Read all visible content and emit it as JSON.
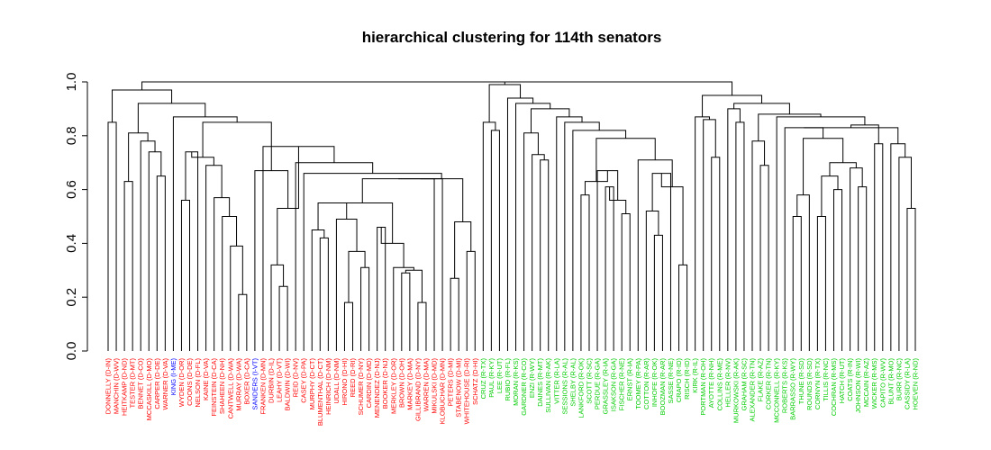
{
  "chart_data": {
    "type": "dendrogram",
    "title": "hierarchical clustering for 114th senators",
    "xlabel": "",
    "ylabel": "",
    "ylim": [
      0,
      1
    ],
    "yticks": [
      "0.0",
      "0.2",
      "0.4",
      "0.6",
      "0.8",
      "1.0"
    ],
    "party_colors": {
      "D": "#ff0000",
      "I": "#0000ff",
      "R": "#00cc00"
    },
    "leaves": [
      "DONNELLY (D-IN)",
      "MANCHIN (D-WV)",
      "HEITKAMP (D-ND)",
      "TESTER (D-MT)",
      "BENNET (D-CO)",
      "MCCASKILL (D-MO)",
      "CARPER (D-DE)",
      "WARNER (D-VA)",
      "KING (I-ME)",
      "WYDEN (D-OR)",
      "COONS (D-DE)",
      "NELSON (D-FL)",
      "KAINE (D-VA)",
      "FEINSTEIN (D-CA)",
      "SHAHEEN (D-NH)",
      "CANTWELL (D-WA)",
      "MURRAY (D-WA)",
      "BOXER (D-CA)",
      "SANDERS (I-VT)",
      "FRANKEN (D-MN)",
      "DURBIN (D-IL)",
      "LEAHY (D-VT)",
      "BALDWIN (D-WI)",
      "REID (D-NV)",
      "CASEY (D-PA)",
      "MURPHY (D-CT)",
      "BLUMENTHAL (D-CT)",
      "HEINRICH (D-NM)",
      "UDALL (D-NM)",
      "HIRONO (D-HI)",
      "REED (D-RI)",
      "SCHUMER (D-NY)",
      "CARDIN (D-MD)",
      "MENENDEZ (D-NJ)",
      "BOOKER (D-NJ)",
      "MERKLEY (D-OR)",
      "BROWN (D-OH)",
      "MARKEY (D-MA)",
      "GILLIBRAND (D-NY)",
      "WARREN (D-MA)",
      "MIKULSKI (D-MD)",
      "KLOBUCHAR (D-MN)",
      "PETERS (D-MI)",
      "STABENOW (D-MI)",
      "WHITEHOUSE (D-RI)",
      "SCHATZ (D-HI)",
      "CRUZ (R-TX)",
      "PAUL (R-KY)",
      "LEE (R-UT)",
      "RUBIO (R-FL)",
      "MORAN (R-KS)",
      "GARDNER (R-CO)",
      "ENZI (R-WY)",
      "DAINES (R-MT)",
      "SULLIVAN (R-AK)",
      "VITTER (R-LA)",
      "SESSIONS (R-AL)",
      "SHELBY (R-AL)",
      "LANKFORD (R-OK)",
      "SCOTT (R-SC)",
      "PERDUE (R-GA)",
      "GRASSLEY (R-IA)",
      "ISAKSON (R-GA)",
      "FISCHER (R-NE)",
      "ERNST (R-IA)",
      "TOOMEY (R-PA)",
      "COTTON (R-AR)",
      "INHOFE (R-OK)",
      "BOOZMAN (R-AR)",
      "SASSE (R-NE)",
      "CRAPO (R-ID)",
      "RISCH (R-ID)",
      "KIRK (R-IL)",
      "PORTMAN (R-OH)",
      "AYOTTE (R-NH)",
      "COLLINS (R-ME)",
      "HELLER (R-NV)",
      "MURKOWSKI (R-AK)",
      "GRAHAM (R-SC)",
      "ALEXANDER (R-TN)",
      "FLAKE (R-AZ)",
      "CORKER (R-TN)",
      "MCCONNELL (R-KY)",
      "ROBERTS (R-KS)",
      "BARRASSO (R-WY)",
      "THUNE (R-SD)",
      "ROUNDS (R-SD)",
      "CORNYN (R-TX)",
      "TILLIS (R-NC)",
      "COCHRAN (R-MS)",
      "HATCH (R-UT)",
      "COATS (R-IN)",
      "JOHNSON (R-WI)",
      "MCCAIN (R-AZ)",
      "WICKER (R-MS)",
      "CAPITO (R-WV)",
      "BLUNT (R-MO)",
      "BURR (R-NC)",
      "CASSIDY (R-LA)",
      "HOEVEN (R-ND)"
    ],
    "merges": [
      [
        [
          "L",
          29
        ],
        [
          "L",
          30
        ],
        0.18
      ],
      [
        [
          "L",
          38
        ],
        [
          "L",
          39
        ],
        0.18
      ],
      [
        [
          "L",
          36
        ],
        [
          "L",
          37
        ],
        0.29
      ],
      [
        [
          "M",
          1
        ],
        [
          "N",
          2
        ],
        0.3
      ],
      [
        [
          "L",
          35
        ],
        [
          "M",
          3
        ],
        0.31
      ],
      [
        [
          "L",
          31
        ],
        [
          "L",
          32
        ],
        0.31
      ],
      [
        [
          "L",
          21
        ],
        [
          "L",
          22
        ],
        0.24
      ],
      [
        [
          "L",
          20
        ],
        [
          "M",
          6
        ],
        0.32
      ],
      [
        [
          "L",
          70
        ],
        [
          "L",
          71
        ],
        0.32
      ],
      [
        [
          "L",
          26
        ],
        [
          "L",
          27
        ],
        0.42
      ],
      [
        [
          "L",
          25
        ],
        [
          "M",
          9
        ],
        0.45
      ],
      [
        [
          "L",
          87
        ],
        [
          "L",
          88
        ],
        0.5
      ],
      [
        [
          "L",
          89
        ],
        [
          "L",
          90
        ],
        0.6
      ],
      [
        [
          "M",
          11
        ],
        [
          "M",
          12
        ],
        0.65
      ],
      [
        [
          "L",
          44
        ],
        [
          "L",
          45
        ],
        0.37
      ],
      [
        [
          "L",
          42
        ],
        [
          "L",
          43
        ],
        0.27
      ],
      [
        [
          "M",
          15
        ],
        [
          "M",
          14
        ],
        0.48
      ],
      [
        [
          "L",
          16
        ],
        [
          "L",
          17
        ],
        0.21
      ],
      [
        [
          "L",
          15
        ],
        [
          "M",
          17
        ],
        0.39
      ],
      [
        [
          "L",
          14
        ],
        [
          "M",
          18
        ],
        0.5
      ],
      [
        [
          "L",
          13
        ],
        [
          "M",
          19
        ],
        0.57
      ],
      [
        [
          "L",
          12
        ],
        [
          "M",
          20
        ],
        0.69
      ],
      [
        [
          "L",
          9
        ],
        [
          "L",
          10
        ],
        0.56
      ],
      [
        [
          "M",
          22
        ],
        [
          "L",
          11
        ],
        0.74
      ],
      [
        [
          "M",
          23
        ],
        [
          "M",
          21
        ],
        0.72
      ],
      [
        [
          "L",
          6
        ],
        [
          "L",
          7
        ],
        0.65
      ],
      [
        [
          "M",
          25
        ],
        [
          "L",
          5
        ],
        0.74
      ],
      [
        [
          "M",
          26
        ],
        [
          "L",
          4
        ],
        0.78
      ],
      [
        [
          "L",
          2
        ],
        [
          "L",
          3
        ],
        0.63
      ],
      [
        [
          "M",
          28
        ],
        [
          "M",
          27
        ],
        0.81
      ],
      [
        [
          "L",
          0
        ],
        [
          "L",
          1
        ],
        0.85
      ],
      [
        [
          "M",
          0
        ],
        [
          "M",
          5
        ],
        0.37
      ],
      [
        [
          "L",
          28
        ],
        [
          "M",
          31
        ],
        0.49
      ],
      [
        [
          "M",
          32
        ],
        [
          "M",
          10
        ],
        0.55
      ],
      [
        [
          "L",
          33
        ],
        [
          "L",
          34
        ],
        0.46
      ],
      [
        [
          "M",
          34
        ],
        [
          "M",
          4
        ],
        0.4
      ],
      [
        [
          "M",
          33
        ],
        [
          "M",
          35
        ],
        0.55
      ],
      [
        [
          "M",
          36
        ],
        [
          "L",
          40
        ],
        0.64
      ],
      [
        [
          "M",
          37
        ],
        [
          "L",
          41
        ],
        0.64
      ],
      [
        [
          "M",
          38
        ],
        [
          "M",
          16
        ],
        0.64
      ],
      [
        [
          "M",
          39
        ],
        [
          "L",
          24
        ],
        0.66
      ],
      [
        [
          "M",
          40
        ],
        [
          "L",
          23
        ],
        0.7
      ],
      [
        [
          "M",
          41
        ],
        [
          "L",
          19
        ],
        0.76
      ],
      [
        [
          "M",
          42
        ],
        [
          "M",
          7
        ],
        0.53
      ],
      [
        [
          "M",
          43
        ],
        [
          "L",
          18
        ],
        0.67
      ],
      [
        [
          "M",
          44
        ],
        [
          "M",
          24
        ],
        0.85
      ],
      [
        [
          "M",
          45
        ],
        [
          "L",
          8
        ],
        0.87
      ],
      [
        [
          "M",
          46
        ],
        [
          "M",
          29
        ],
        0.92
      ],
      [
        [
          "M",
          47
        ],
        [
          "M",
          30
        ],
        0.97
      ],
      [
        [
          "L",
          47
        ],
        [
          "L",
          48
        ],
        0.82
      ],
      [
        [
          "L",
          46
        ],
        [
          "M",
          49
        ],
        0.85
      ],
      [
        [
          "L",
          53
        ],
        [
          "L",
          54
        ],
        0.71
      ],
      [
        [
          "L",
          52
        ],
        [
          "M",
          51
        ],
        0.73
      ],
      [
        [
          "L",
          51
        ],
        [
          "M",
          52
        ],
        0.81
      ],
      [
        [
          "L",
          61
        ],
        [
          "L",
          62
        ],
        0.61
      ],
      [
        [
          "L",
          63
        ],
        [
          "L",
          64
        ],
        0.51
      ],
      [
        [
          "M",
          54
        ],
        [
          "M",
          55
        ],
        0.56
      ],
      [
        [
          "L",
          60
        ],
        [
          "M",
          56
        ],
        0.67
      ],
      [
        [
          "L",
          58
        ],
        [
          "L",
          59
        ],
        0.58
      ],
      [
        [
          "M",
          58
        ],
        [
          "M",
          57
        ],
        0.63
      ],
      [
        [
          "L",
          67
        ],
        [
          "L",
          68
        ],
        0.43
      ],
      [
        [
          "L",
          66
        ],
        [
          "M",
          60
        ],
        0.52
      ],
      [
        [
          "M",
          61
        ],
        [
          "L",
          69
        ],
        0.66
      ],
      [
        [
          "M",
          62
        ],
        [
          "M",
          8
        ],
        0.61
      ],
      [
        [
          "L",
          65
        ],
        [
          "M",
          63
        ],
        0.71
      ],
      [
        [
          "M",
          59
        ],
        [
          "M",
          64
        ],
        0.79
      ],
      [
        [
          "L",
          57
        ],
        [
          "M",
          65
        ],
        0.82
      ],
      [
        [
          "L",
          56
        ],
        [
          "M",
          66
        ],
        0.85
      ],
      [
        [
          "L",
          55
        ],
        [
          "M",
          67
        ],
        0.87
      ],
      [
        [
          "M",
          53
        ],
        [
          "M",
          68
        ],
        0.9
      ],
      [
        [
          "L",
          50
        ],
        [
          "M",
          69
        ],
        0.92
      ],
      [
        [
          "L",
          49
        ],
        [
          "M",
          70
        ],
        0.94
      ],
      [
        [
          "M",
          50
        ],
        [
          "M",
          71
        ],
        0.99
      ],
      [
        [
          "L",
          74
        ],
        [
          "L",
          75
        ],
        0.72
      ],
      [
        [
          "L",
          73
        ],
        [
          "M",
          73
        ],
        0.86
      ],
      [
        [
          "L",
          72
        ],
        [
          "M",
          74
        ],
        0.87
      ],
      [
        [
          "L",
          77
        ],
        [
          "L",
          78
        ],
        0.85
      ],
      [
        [
          "L",
          76
        ],
        [
          "M",
          76
        ],
        0.9
      ],
      [
        [
          "L",
          80
        ],
        [
          "L",
          81
        ],
        0.69
      ],
      [
        [
          "L",
          79
        ],
        [
          "M",
          78
        ],
        0.78
      ],
      [
        [
          "L",
          84
        ],
        [
          "L",
          85
        ],
        0.5
      ],
      [
        [
          "M",
          80
        ],
        [
          "L",
          86
        ],
        0.58
      ],
      [
        [
          "L",
          92
        ],
        [
          "L",
          93
        ],
        0.61
      ],
      [
        [
          "L",
          91
        ],
        [
          "M",
          82
        ],
        0.68
      ],
      [
        [
          "M",
          13
        ],
        [
          "M",
          83
        ],
        0.7
      ],
      [
        [
          "M",
          81
        ],
        [
          "M",
          84
        ],
        0.79
      ],
      [
        [
          "L",
          83
        ],
        [
          "M",
          85
        ],
        0.83
      ],
      [
        [
          "L",
          98
        ],
        [
          "L",
          99
        ],
        0.53
      ],
      [
        [
          "L",
          97
        ],
        [
          "M",
          87
        ],
        0.72
      ],
      [
        [
          "L",
          96
        ],
        [
          "M",
          88
        ],
        0.77
      ],
      [
        [
          "M",
          86
        ],
        [
          "M",
          89
        ],
        0.83
      ],
      [
        [
          "L",
          95
        ],
        [
          "L",
          94
        ],
        0.77
      ],
      [
        [
          "M",
          90
        ],
        [
          "M",
          91
        ],
        0.84
      ],
      [
        [
          "L",
          82
        ],
        [
          "M",
          92
        ],
        0.87
      ],
      [
        [
          "M",
          79
        ],
        [
          "M",
          93
        ],
        0.88
      ],
      [
        [
          "M",
          77
        ],
        [
          "M",
          94
        ],
        0.92
      ],
      [
        [
          "M",
          75
        ],
        [
          "M",
          95
        ],
        0.95
      ],
      [
        [
          "M",
          72
        ],
        [
          "M",
          96
        ],
        1.0
      ],
      [
        [
          "M",
          48
        ],
        [
          "M",
          97
        ],
        1.0
      ]
    ]
  }
}
